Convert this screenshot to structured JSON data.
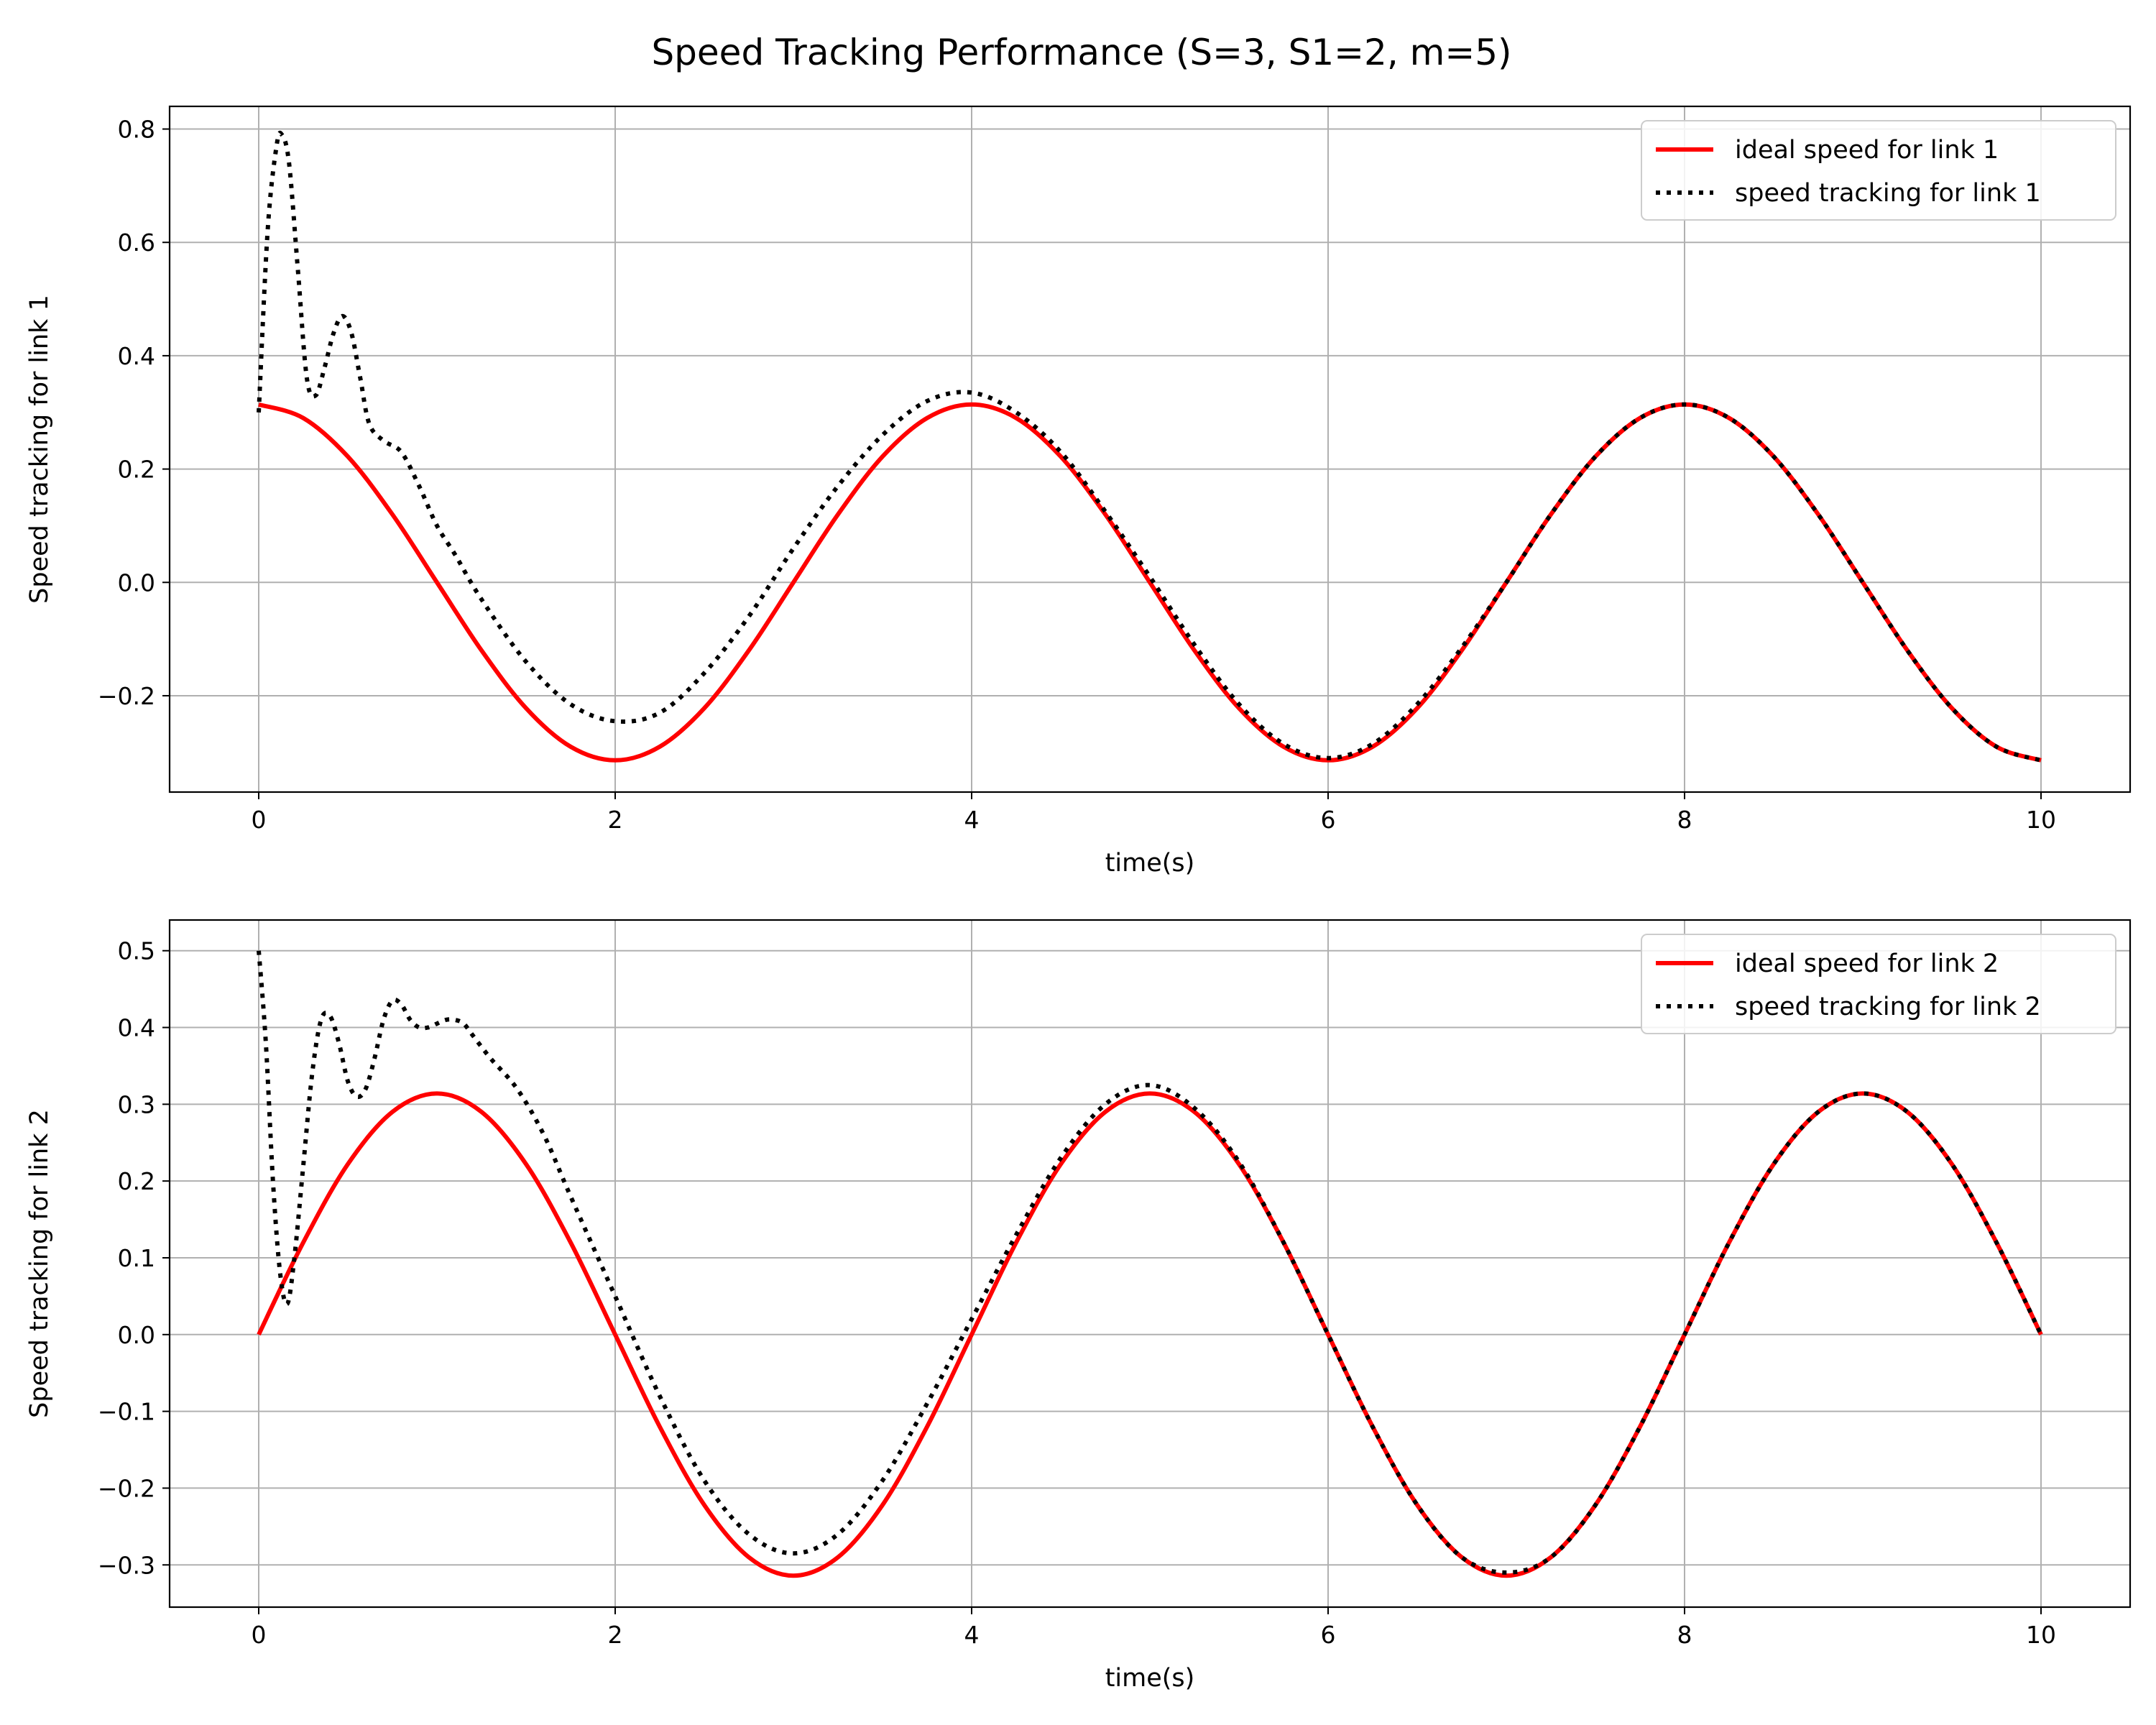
{
  "title": "Speed Tracking Performance (S=3, S1=2, m=5)",
  "colors": {
    "ideal": "#ff0000",
    "tracking": "#000000",
    "grid": "#b0b0b0"
  },
  "chart_data": [
    {
      "type": "line",
      "xlabel": "time(s)",
      "ylabel": "Speed tracking for link 1",
      "xlim": [
        -0.5,
        10.5
      ],
      "ylim": [
        -0.37,
        0.84
      ],
      "xticks": [
        0,
        2,
        4,
        6,
        8,
        10
      ],
      "yticks": [
        -0.2,
        0.0,
        0.2,
        0.4,
        0.6,
        0.8
      ],
      "ytick_labels": [
        "−0.2",
        "0.0",
        "0.2",
        "0.4",
        "0.6",
        "0.8"
      ],
      "grid": true,
      "legend_position": "upper right",
      "series": [
        {
          "name": "ideal speed for link 1",
          "style": "solid",
          "color": "#ff0000",
          "x": [
            0,
            0.25,
            0.5,
            0.75,
            1.0,
            1.25,
            1.5,
            1.75,
            2.0,
            2.25,
            2.5,
            2.75,
            3.0,
            3.25,
            3.5,
            3.75,
            4.0,
            4.25,
            4.5,
            4.75,
            5.0,
            5.25,
            5.5,
            5.75,
            6.0,
            6.25,
            6.5,
            6.75,
            7.0,
            7.25,
            7.5,
            7.75,
            8.0,
            8.25,
            8.5,
            8.75,
            9.0,
            9.25,
            9.5,
            9.75,
            10.0
          ],
          "y": [
            0.314,
            0.29,
            0.222,
            0.12,
            0.0,
            -0.12,
            -0.222,
            -0.29,
            -0.314,
            -0.29,
            -0.222,
            -0.12,
            0.0,
            0.12,
            0.222,
            0.29,
            0.314,
            0.29,
            0.222,
            0.12,
            0.0,
            -0.12,
            -0.222,
            -0.29,
            -0.314,
            -0.29,
            -0.222,
            -0.12,
            0.0,
            0.12,
            0.222,
            0.29,
            0.314,
            0.29,
            0.222,
            0.12,
            0.0,
            -0.12,
            -0.222,
            -0.29,
            -0.314
          ]
        },
        {
          "name": "speed tracking for link 1",
          "style": "dotted",
          "color": "#000000",
          "x": [
            0,
            0.05,
            0.1,
            0.13,
            0.17,
            0.22,
            0.27,
            0.32,
            0.37,
            0.42,
            0.47,
            0.52,
            0.57,
            0.62,
            0.7,
            0.8,
            0.9,
            1.0,
            1.1,
            1.25,
            1.5,
            1.75,
            2.0,
            2.25,
            2.5,
            2.75,
            3.0,
            3.25,
            3.5,
            3.75,
            4.0,
            4.25,
            4.5,
            4.75,
            5.0,
            5.25,
            5.5,
            5.75,
            6.0,
            6.25,
            6.5,
            6.75,
            7.0,
            7.25,
            7.5,
            7.75,
            8.0,
            8.25,
            8.5,
            8.75,
            9.0,
            9.25,
            9.5,
            9.75,
            10.0
          ],
          "y": [
            0.3,
            0.62,
            0.77,
            0.79,
            0.74,
            0.55,
            0.36,
            0.33,
            0.38,
            0.44,
            0.47,
            0.44,
            0.36,
            0.28,
            0.25,
            0.23,
            0.17,
            0.1,
            0.05,
            -0.03,
            -0.14,
            -0.215,
            -0.245,
            -0.23,
            -0.16,
            -0.06,
            0.06,
            0.17,
            0.26,
            0.32,
            0.335,
            0.3,
            0.23,
            0.125,
            0.01,
            -0.11,
            -0.215,
            -0.285,
            -0.31,
            -0.285,
            -0.215,
            -0.115,
            0.0,
            0.12,
            0.222,
            0.29,
            0.314,
            0.29,
            0.222,
            0.12,
            0.0,
            -0.12,
            -0.222,
            -0.29,
            -0.314
          ]
        }
      ]
    },
    {
      "type": "line",
      "xlabel": "time(s)",
      "ylabel": "Speed tracking for link 2",
      "xlim": [
        -0.5,
        10.5
      ],
      "ylim": [
        -0.355,
        0.54
      ],
      "xticks": [
        0,
        2,
        4,
        6,
        8,
        10
      ],
      "yticks": [
        -0.3,
        -0.2,
        -0.1,
        0.0,
        0.1,
        0.2,
        0.3,
        0.4,
        0.5
      ],
      "ytick_labels": [
        "−0.3",
        "−0.2",
        "−0.1",
        "0.0",
        "0.1",
        "0.2",
        "0.3",
        "0.4",
        "0.5"
      ],
      "grid": true,
      "legend_position": "upper right",
      "series": [
        {
          "name": "ideal speed for link 2",
          "style": "solid",
          "color": "#ff0000",
          "x": [
            0,
            0.25,
            0.5,
            0.75,
            1.0,
            1.25,
            1.5,
            1.75,
            2.0,
            2.25,
            2.5,
            2.75,
            3.0,
            3.25,
            3.5,
            3.75,
            4.0,
            4.25,
            4.5,
            4.75,
            5.0,
            5.25,
            5.5,
            5.75,
            6.0,
            6.25,
            6.5,
            6.75,
            7.0,
            7.25,
            7.5,
            7.75,
            8.0,
            8.25,
            8.5,
            8.75,
            9.0,
            9.25,
            9.5,
            9.75,
            10.0
          ],
          "y": [
            0.0,
            0.12,
            0.222,
            0.29,
            0.314,
            0.29,
            0.222,
            0.12,
            0.0,
            -0.12,
            -0.222,
            -0.29,
            -0.314,
            -0.29,
            -0.222,
            -0.12,
            0.0,
            0.12,
            0.222,
            0.29,
            0.314,
            0.29,
            0.222,
            0.12,
            0.0,
            -0.12,
            -0.222,
            -0.29,
            -0.314,
            -0.29,
            -0.222,
            -0.12,
            0.0,
            0.12,
            0.222,
            0.29,
            0.314,
            0.29,
            0.222,
            0.12,
            0.0
          ]
        },
        {
          "name": "speed tracking for link 2",
          "style": "dotted",
          "color": "#000000",
          "x": [
            0,
            0.04,
            0.08,
            0.12,
            0.16,
            0.2,
            0.25,
            0.3,
            0.35,
            0.4,
            0.45,
            0.5,
            0.55,
            0.6,
            0.65,
            0.7,
            0.75,
            0.8,
            0.85,
            0.9,
            0.95,
            1.0,
            1.05,
            1.1,
            1.15,
            1.2,
            1.3,
            1.45,
            1.6,
            1.75,
            2.0,
            2.25,
            2.5,
            2.75,
            3.0,
            3.25,
            3.5,
            3.75,
            4.0,
            4.25,
            4.5,
            4.75,
            5.0,
            5.25,
            5.5,
            5.75,
            6.0,
            6.25,
            6.5,
            6.75,
            7.0,
            7.25,
            7.5,
            7.75,
            8.0,
            8.25,
            8.5,
            8.75,
            9.0,
            9.25,
            9.5,
            9.75,
            10.0
          ],
          "y": [
            0.5,
            0.38,
            0.2,
            0.08,
            0.04,
            0.1,
            0.22,
            0.34,
            0.41,
            0.415,
            0.38,
            0.33,
            0.31,
            0.32,
            0.36,
            0.41,
            0.435,
            0.43,
            0.41,
            0.4,
            0.4,
            0.405,
            0.41,
            0.41,
            0.405,
            0.39,
            0.36,
            0.32,
            0.26,
            0.18,
            0.05,
            -0.08,
            -0.19,
            -0.26,
            -0.285,
            -0.26,
            -0.19,
            -0.09,
            0.02,
            0.13,
            0.23,
            0.3,
            0.325,
            0.295,
            0.225,
            0.12,
            0.0,
            -0.12,
            -0.222,
            -0.29,
            -0.31,
            -0.29,
            -0.222,
            -0.12,
            0.0,
            0.12,
            0.222,
            0.29,
            0.314,
            0.29,
            0.222,
            0.12,
            0.0
          ]
        }
      ]
    }
  ]
}
